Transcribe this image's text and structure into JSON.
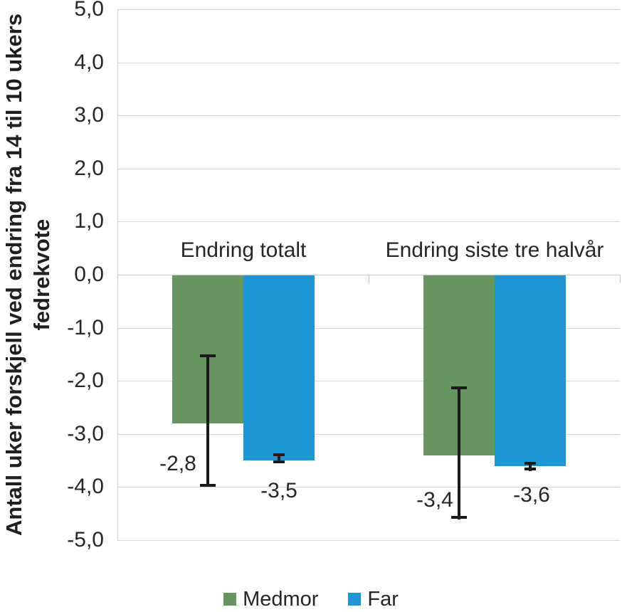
{
  "chart_data": {
    "type": "bar",
    "title": "",
    "ylabel": "Antall uker forskjell ved endring fra 14 til 10 ukers fedrekvote",
    "ylabel_lines": [
      "Antall uker forskjell ved endring fra 14 til 10 ukers",
      "fedrekvote"
    ],
    "ylim": [
      -5,
      5
    ],
    "ytick_values": [
      5,
      4,
      3,
      2,
      1,
      0,
      -1,
      -2,
      -3,
      -4,
      -5
    ],
    "ytick_labels": [
      "5,0",
      "4,0",
      "3,0",
      "2,0",
      "1,0",
      "0,0",
      "-1,0",
      "-2,0",
      "-3,0",
      "-4,0",
      "-5,0"
    ],
    "grid": true,
    "legend_position": "bottom",
    "groups": [
      {
        "label": "Endring totalt"
      },
      {
        "label": "Endring siste tre halvår"
      }
    ],
    "series": [
      {
        "name": "Medmor",
        "color": "#669561",
        "values": [
          -2.8,
          -3.4
        ],
        "value_labels": [
          "-2,8",
          "-3,4"
        ],
        "ci_high": [
          -1.5,
          -2.1
        ],
        "ci_low": [
          -4.0,
          -4.6
        ]
      },
      {
        "name": "Far",
        "color": "#1E96D4",
        "values": [
          -3.5,
          -3.6
        ],
        "value_labels": [
          "-3,5",
          "-3,6"
        ],
        "ci_high": [
          -3.36,
          -3.52
        ],
        "ci_low": [
          -3.55,
          -3.69
        ]
      }
    ],
    "colors": {
      "gridline": "#D9D9D9",
      "zero_line": "#C6C6C6",
      "error_bar": "#1A1A1A",
      "text": "#262626"
    }
  }
}
